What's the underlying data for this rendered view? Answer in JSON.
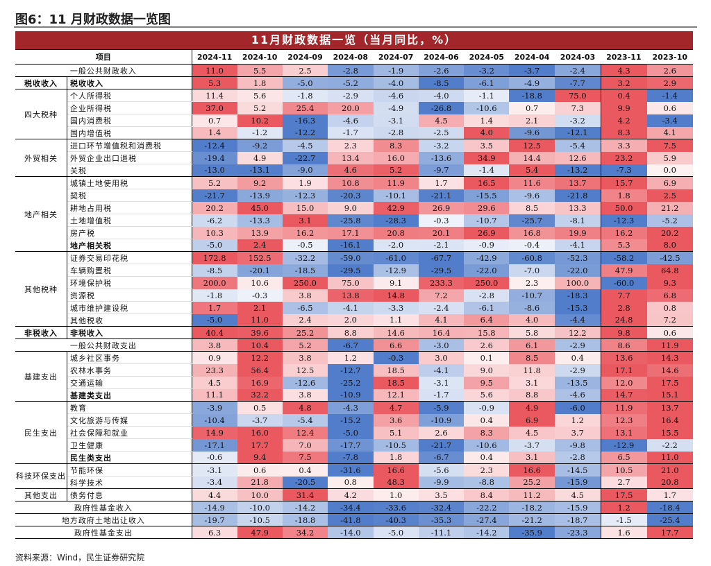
{
  "figure_title": "图6：11 月财政数据一览图",
  "table_title": "11月财政数据一览（当月同比，%）",
  "columns": [
    "项目",
    "2024-11",
    "2024-10",
    "2024-09",
    "2024-08",
    "2024-07",
    "2024-06",
    "2024-05",
    "2024-04",
    "2024-03",
    "2023-11",
    "2023-10"
  ],
  "source": "资料来源：Wind，民生证券研究院",
  "colors": {
    "banner": "#a3262b",
    "positive": "#e8474f",
    "negative": "#3f6fc4"
  },
  "rows": [
    {
      "cat": "",
      "item": "一般公共财政收入",
      "span": true,
      "values": [
        11.0,
        5.5,
        2.5,
        -2.8,
        -1.9,
        -2.6,
        -3.2,
        -3.7,
        -2.4,
        4.3,
        2.6
      ],
      "grp_end": true
    },
    {
      "cat": "税收收入",
      "item": "税收收入",
      "bold": true,
      "catbold": true,
      "values": [
        5.3,
        1.8,
        -5.0,
        -5.2,
        -4.0,
        -8.5,
        -6.1,
        -4.9,
        -7.7,
        3.2,
        2.9
      ],
      "grp_end": true
    },
    {
      "cat": "四大税种",
      "rowspan": 4,
      "item": "个人所得税",
      "values": [
        11.4,
        5.6,
        -1.8,
        -2.9,
        -4.6,
        -4.0,
        -1.1,
        -18.8,
        75.0,
        0.4,
        -1.4
      ]
    },
    {
      "item": "企业所得税",
      "values": [
        37.0,
        5.2,
        25.4,
        20.0,
        -4.9,
        -26.8,
        -10.6,
        0.7,
        7.3,
        9.9,
        0.6
      ]
    },
    {
      "item": "国内消费税",
      "values": [
        0.7,
        10.2,
        -16.3,
        -4.6,
        -3.1,
        4.5,
        1.4,
        2.1,
        -3.2,
        4.2,
        -3.4
      ]
    },
    {
      "item": "国内增值税",
      "values": [
        1.4,
        -1.2,
        -12.2,
        -1.7,
        -2.8,
        -2.5,
        4.0,
        -9.6,
        -12.1,
        8.3,
        4.1
      ],
      "grp_end": true
    },
    {
      "cat": "外贸相关",
      "rowspan": 3,
      "item": "进口环节增值税和消费税",
      "values": [
        -12.4,
        -9.2,
        -4.5,
        2.3,
        8.3,
        -3.2,
        3.5,
        12.5,
        -5.4,
        3.3,
        7.5
      ]
    },
    {
      "item": "外贸企业出口退税",
      "values": [
        -19.4,
        4.9,
        -22.7,
        13.4,
        16.0,
        -13.6,
        34.9,
        14.4,
        12.6,
        23.2,
        5.9
      ]
    },
    {
      "item": "关税",
      "values": [
        -13.0,
        -13.1,
        -9.0,
        4.6,
        5.2,
        -9.7,
        -1.4,
        5.4,
        -13.2,
        -7.3,
        0.0
      ],
      "grp_end": true
    },
    {
      "cat": "地产相关",
      "rowspan": 6,
      "item": "城镇土地使用税",
      "values": [
        5.2,
        9.2,
        1.9,
        10.8,
        11.9,
        1.7,
        16.5,
        11.6,
        13.7,
        15.7,
        6.9
      ]
    },
    {
      "item": "契税",
      "values": [
        -21.7,
        -13.9,
        -12.3,
        -20.3,
        -10.1,
        -21.1,
        -15.5,
        -9.6,
        -21.8,
        1.8,
        2.5
      ]
    },
    {
      "item": "耕地占用税",
      "values": [
        20.2,
        45.0,
        15.0,
        9.0,
        42.9,
        26.9,
        29.6,
        8.5,
        13.3,
        50.0,
        21.2
      ]
    },
    {
      "item": "土地增值税",
      "values": [
        -6.2,
        -13.3,
        3.1,
        -25.8,
        -28.3,
        -0.3,
        -10.7,
        -25.7,
        -8.1,
        -12.3,
        -5.2
      ]
    },
    {
      "item": "房产税",
      "values": [
        10.3,
        13.9,
        16.2,
        17.1,
        20.8,
        20.1,
        26.9,
        16.8,
        19.9,
        16.2,
        20.2
      ]
    },
    {
      "item": "地产相关税",
      "bold": true,
      "values": [
        -5.0,
        2.4,
        -0.5,
        -16.1,
        -2.0,
        -2.1,
        -0.9,
        -0.4,
        -4.1,
        5.3,
        8.0
      ],
      "grp_end": true
    },
    {
      "cat": "其他税种",
      "rowspan": 6,
      "item": "证券交易印花税",
      "values": [
        172.8,
        152.5,
        -32.2,
        -59.0,
        -61.0,
        -67.7,
        -42.9,
        -60.8,
        -52.3,
        -58.2,
        -42.5
      ]
    },
    {
      "item": "车辆购置税",
      "values": [
        -8.5,
        -20.1,
        -18.5,
        -29.5,
        -12.9,
        -29.5,
        -22.0,
        -7.0,
        -22.0,
        47.9,
        64.8
      ]
    },
    {
      "item": "环境保护税",
      "values": [
        200.0,
        10.6,
        250.0,
        75.0,
        9.1,
        233.3,
        250.0,
        2.3,
        100.0,
        -60.0,
        9.3
      ]
    },
    {
      "item": "资源税",
      "values": [
        -1.8,
        -0.3,
        3.8,
        13.8,
        14.8,
        7.2,
        -2.8,
        -10.7,
        -18.3,
        7.7,
        6.8
      ]
    },
    {
      "item": "城市维护建设税",
      "values": [
        1.7,
        2.1,
        -6.5,
        -4.1,
        -3.3,
        -2.4,
        -6.1,
        -8.6,
        -15.3,
        2.8,
        0.8
      ]
    },
    {
      "item": "其他税收",
      "values": [
        -5.0,
        11.0,
        2.4,
        2.0,
        1.1,
        4.1,
        6.4,
        4.0,
        -4.4,
        24.8,
        7.2
      ],
      "grp_end": true
    },
    {
      "cat": "非税收入",
      "item": "非税收入",
      "bold": true,
      "catbold": true,
      "values": [
        40.4,
        39.6,
        25.2,
        8.8,
        14.6,
        16.4,
        15.8,
        5.8,
        12.2,
        9.8,
        0.6
      ],
      "grp_end": true
    },
    {
      "cat": "",
      "item": "一般公共财政支出",
      "span": true,
      "values": [
        3.8,
        10.4,
        5.2,
        -6.7,
        6.6,
        -3.0,
        2.6,
        6.1,
        -2.9,
        8.6,
        11.9
      ],
      "grp_end": true
    },
    {
      "cat": "基建支出",
      "rowspan": 4,
      "item": "城乡社区事务",
      "values": [
        0.9,
        12.2,
        3.8,
        1.2,
        -0.3,
        3.0,
        0.1,
        8.5,
        0.4,
        13.6,
        14.3
      ]
    },
    {
      "item": "农林水事务",
      "values": [
        23.3,
        56.4,
        12.5,
        -12.7,
        18.5,
        -4.1,
        9.0,
        11.8,
        -2.9,
        17.1,
        14.6
      ]
    },
    {
      "item": "交通运输",
      "values": [
        4.5,
        16.9,
        -12.6,
        -25.2,
        18.5,
        -3.1,
        9.5,
        3.1,
        -13.5,
        12.0,
        17.5
      ]
    },
    {
      "item": "基建类支出",
      "bold": true,
      "values": [
        11.1,
        32.2,
        3.8,
        -10.9,
        12.1,
        -1.7,
        5.6,
        8.8,
        -4.6,
        14.7,
        15.1
      ],
      "grp_end": true
    },
    {
      "cat": "民生支出",
      "rowspan": 5,
      "item": "教育",
      "values": [
        -3.9,
        0.5,
        4.8,
        -4.3,
        4.7,
        -5.9,
        -0.9,
        4.9,
        -6.0,
        11.9,
        13.7
      ]
    },
    {
      "item": "文化旅游与传媒",
      "values": [
        -10.4,
        -3.7,
        -5.4,
        -15.2,
        3.6,
        -10.9,
        0.4,
        6.9,
        1.2,
        12.3,
        16.4
      ]
    },
    {
      "item": "社会保障和就业",
      "values": [
        14.9,
        16.0,
        12.4,
        -5.0,
        5.1,
        2.6,
        8.3,
        4.5,
        3.7,
        13.1,
        15.5
      ]
    },
    {
      "item": "卫生健康",
      "values": [
        -17.1,
        17.7,
        7.0,
        -17.7,
        -10.5,
        -21.7,
        -10.6,
        -3.7,
        -9.8,
        -12.9,
        -2.2
      ]
    },
    {
      "item": "民生类支出",
      "bold": true,
      "values": [
        -0.6,
        9.4,
        7.5,
        -7.8,
        1.8,
        -6.7,
        0.4,
        3.1,
        -2.8,
        6.5,
        11.0
      ],
      "grp_end": true
    },
    {
      "cat": "科技环保支出",
      "rowspan": 2,
      "item": "节能环保",
      "values": [
        -3.1,
        0.6,
        0.4,
        -31.6,
        16.6,
        -5.6,
        2.3,
        16.6,
        -14.5,
        10.5,
        21.0
      ]
    },
    {
      "item": "科学技术",
      "values": [
        -3.4,
        21.8,
        -20.5,
        0.8,
        48.3,
        -9.9,
        -8.8,
        25.2,
        -15.9,
        2.7,
        20.8
      ],
      "grp_end": true
    },
    {
      "cat": "其他支出",
      "item": "债务付息",
      "values": [
        4.4,
        10.0,
        31.4,
        4.2,
        1.0,
        3.5,
        8.4,
        11.2,
        4.5,
        17.5,
        1.7
      ],
      "grp_end": true
    },
    {
      "cat": "",
      "item": "政府性基金收入",
      "span": true,
      "values": [
        -14.9,
        -10.0,
        -14.2,
        -34.4,
        -33.6,
        -32.4,
        -22.2,
        -18.2,
        -15.9,
        1.2,
        -18.4
      ],
      "grp_end": true
    },
    {
      "cat": "",
      "item": "地方政府土地出让收入",
      "span": true,
      "values": [
        -19.7,
        -10.5,
        -18.8,
        -41.8,
        -40.3,
        -35.3,
        -27.4,
        -21.2,
        -18.7,
        -1.5,
        -25.4
      ],
      "grp_end": true
    },
    {
      "cat": "",
      "item": "政府性基金支出",
      "span": true,
      "values": [
        6.3,
        47.9,
        34.2,
        -14.0,
        -5.0,
        -11.1,
        -14.2,
        -35.9,
        -23.3,
        1.6,
        17.7
      ],
      "grp_end": true
    }
  ]
}
